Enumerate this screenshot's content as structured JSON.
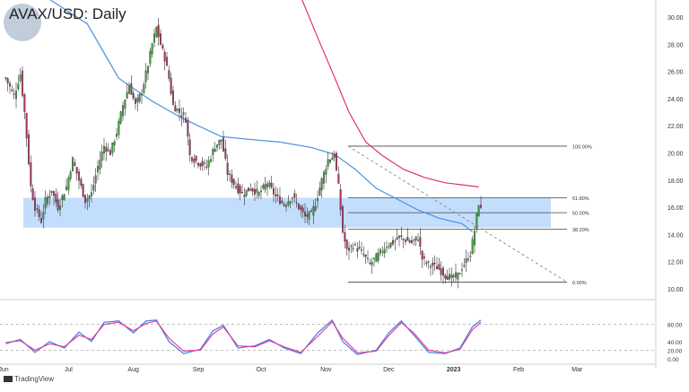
{
  "header": {
    "title": "AVAX/USD: Daily"
  },
  "footer": {
    "brand": "TradingView"
  },
  "colors": {
    "up": "#3a9a3a",
    "down": "#a8335a",
    "wick": "#333333",
    "ma_fast": "#4a90e2",
    "ma_slow": "#e0307a",
    "zone": "#b9d8fb",
    "stoch_k": "#3f7fe0",
    "stoch_d": "#e040a0"
  },
  "chart_data": [
    {
      "type": "candlestick",
      "title": "AVAX/USD: Daily",
      "y_ticks": [
        "30.00",
        "28.00",
        "26.00",
        "24.00",
        "22.00",
        "20.00",
        "18.00",
        "16.00",
        "14.00",
        "12.00",
        "10.00"
      ],
      "x_ticks": [
        "Jun",
        "Jul",
        "Aug",
        "Sep",
        "Oct",
        "Nov",
        "Dec",
        "2023",
        "Feb",
        "Mar"
      ],
      "ylim": [
        9.5,
        31.0
      ],
      "grid": false,
      "support_zone": [
        14.5,
        16.7
      ],
      "fibonacci": {
        "levels": [
          {
            "label": "100.00%",
            "value": 20.5
          },
          {
            "label": "61.80%",
            "value": 16.7
          },
          {
            "label": "50.00%",
            "value": 15.6
          },
          {
            "label": "38.20%",
            "value": 14.4
          },
          {
            "label": "0.00%",
            "value": 10.5
          }
        ]
      },
      "close_series": [
        {
          "date": "2022-06-01",
          "close": 25.5
        },
        {
          "date": "2022-06-05",
          "close": 24.2
        },
        {
          "date": "2022-06-08",
          "close": 25.8
        },
        {
          "date": "2022-06-10",
          "close": 23.0
        },
        {
          "date": "2022-06-13",
          "close": 17.5
        },
        {
          "date": "2022-06-15",
          "close": 16.0
        },
        {
          "date": "2022-06-18",
          "close": 15.0
        },
        {
          "date": "2022-06-20",
          "close": 16.5
        },
        {
          "date": "2022-06-23",
          "close": 17.2
        },
        {
          "date": "2022-06-26",
          "close": 16.0
        },
        {
          "date": "2022-06-30",
          "close": 17.5
        },
        {
          "date": "2022-07-03",
          "close": 19.5
        },
        {
          "date": "2022-07-06",
          "close": 18.0
        },
        {
          "date": "2022-07-09",
          "close": 16.5
        },
        {
          "date": "2022-07-12",
          "close": 17.0
        },
        {
          "date": "2022-07-15",
          "close": 19.0
        },
        {
          "date": "2022-07-18",
          "close": 20.5
        },
        {
          "date": "2022-07-21",
          "close": 20.0
        },
        {
          "date": "2022-07-24",
          "close": 21.5
        },
        {
          "date": "2022-07-27",
          "close": 23.5
        },
        {
          "date": "2022-07-30",
          "close": 25.0
        },
        {
          "date": "2022-08-02",
          "close": 23.5
        },
        {
          "date": "2022-08-05",
          "close": 24.5
        },
        {
          "date": "2022-08-08",
          "close": 26.5
        },
        {
          "date": "2022-08-10",
          "close": 28.0
        },
        {
          "date": "2022-08-12",
          "close": 29.2
        },
        {
          "date": "2022-08-14",
          "close": 28.0
        },
        {
          "date": "2022-08-16",
          "close": 27.0
        },
        {
          "date": "2022-08-18",
          "close": 25.5
        },
        {
          "date": "2022-08-20",
          "close": 23.5
        },
        {
          "date": "2022-08-23",
          "close": 23.0
        },
        {
          "date": "2022-08-26",
          "close": 22.5
        },
        {
          "date": "2022-08-28",
          "close": 19.8
        },
        {
          "date": "2022-09-01",
          "close": 19.3
        },
        {
          "date": "2022-09-05",
          "close": 19.0
        },
        {
          "date": "2022-09-09",
          "close": 20.5
        },
        {
          "date": "2022-09-12",
          "close": 21.0
        },
        {
          "date": "2022-09-15",
          "close": 18.5
        },
        {
          "date": "2022-09-19",
          "close": 17.5
        },
        {
          "date": "2022-09-22",
          "close": 17.0
        },
        {
          "date": "2022-09-26",
          "close": 17.4
        },
        {
          "date": "2022-09-30",
          "close": 17.0
        },
        {
          "date": "2022-10-04",
          "close": 17.8
        },
        {
          "date": "2022-10-08",
          "close": 16.8
        },
        {
          "date": "2022-10-12",
          "close": 16.2
        },
        {
          "date": "2022-10-16",
          "close": 16.8
        },
        {
          "date": "2022-10-19",
          "close": 16.0
        },
        {
          "date": "2022-10-22",
          "close": 15.3
        },
        {
          "date": "2022-10-25",
          "close": 15.5
        },
        {
          "date": "2022-10-27",
          "close": 16.3
        },
        {
          "date": "2022-10-30",
          "close": 18.0
        },
        {
          "date": "2022-11-02",
          "close": 19.5
        },
        {
          "date": "2022-11-05",
          "close": 19.8
        },
        {
          "date": "2022-11-07",
          "close": 17.5
        },
        {
          "date": "2022-11-09",
          "close": 14.2
        },
        {
          "date": "2022-11-11",
          "close": 12.8
        },
        {
          "date": "2022-11-14",
          "close": 13.2
        },
        {
          "date": "2022-11-18",
          "close": 12.7
        },
        {
          "date": "2022-11-22",
          "close": 11.8
        },
        {
          "date": "2022-11-26",
          "close": 12.5
        },
        {
          "date": "2022-11-30",
          "close": 13.2
        },
        {
          "date": "2022-12-03",
          "close": 13.4
        },
        {
          "date": "2022-12-06",
          "close": 13.8
        },
        {
          "date": "2022-12-09",
          "close": 13.6
        },
        {
          "date": "2022-12-12",
          "close": 13.4
        },
        {
          "date": "2022-12-15",
          "close": 13.8
        },
        {
          "date": "2022-12-17",
          "close": 12.2
        },
        {
          "date": "2022-12-20",
          "close": 11.8
        },
        {
          "date": "2022-12-24",
          "close": 11.6
        },
        {
          "date": "2022-12-28",
          "close": 11.0
        },
        {
          "date": "2022-12-31",
          "close": 10.8
        },
        {
          "date": "2023-01-03",
          "close": 11.0
        },
        {
          "date": "2023-01-06",
          "close": 11.8
        },
        {
          "date": "2023-01-09",
          "close": 12.6
        },
        {
          "date": "2023-01-11",
          "close": 14.3
        },
        {
          "date": "2023-01-13",
          "close": 16.3
        },
        {
          "date": "2023-01-14",
          "close": 15.8
        }
      ],
      "ma_fast_values": [
        {
          "date": "2022-06-15",
          "value": 32.0
        },
        {
          "date": "2022-07-10",
          "value": 29.5
        },
        {
          "date": "2022-07-25",
          "value": 25.5
        },
        {
          "date": "2022-08-10",
          "value": 23.8
        },
        {
          "date": "2022-08-25",
          "value": 22.5
        },
        {
          "date": "2022-09-12",
          "value": 21.2
        },
        {
          "date": "2022-09-25",
          "value": 21.0
        },
        {
          "date": "2022-10-10",
          "value": 20.8
        },
        {
          "date": "2022-10-25",
          "value": 20.4
        },
        {
          "date": "2022-11-05",
          "value": 19.9
        },
        {
          "date": "2022-11-15",
          "value": 18.8
        },
        {
          "date": "2022-11-25",
          "value": 17.4
        },
        {
          "date": "2022-12-05",
          "value": 16.6
        },
        {
          "date": "2022-12-15",
          "value": 15.8
        },
        {
          "date": "2022-12-25",
          "value": 15.2
        },
        {
          "date": "2023-01-05",
          "value": 14.8
        },
        {
          "date": "2023-01-10",
          "value": 14.2
        }
      ],
      "ma_slow_values": [
        {
          "date": "2022-10-20",
          "value": 31.5
        },
        {
          "date": "2022-10-28",
          "value": 28.5
        },
        {
          "date": "2022-11-05",
          "value": 25.6
        },
        {
          "date": "2022-11-12",
          "value": 23.0
        },
        {
          "date": "2022-11-20",
          "value": 20.8
        },
        {
          "date": "2022-11-28",
          "value": 19.8
        },
        {
          "date": "2022-12-08",
          "value": 18.8
        },
        {
          "date": "2022-12-18",
          "value": 18.2
        },
        {
          "date": "2022-12-28",
          "value": 17.8
        },
        {
          "date": "2023-01-08",
          "value": 17.6
        },
        {
          "date": "2023-01-13",
          "value": 17.5
        }
      ]
    },
    {
      "type": "line",
      "title": "",
      "y_ticks": [
        "80.00",
        "40.00",
        "20.00",
        "0.00"
      ],
      "ylim": [
        -5,
        100
      ],
      "overbought": 80,
      "oversold": 20,
      "series": [
        {
          "values": [
            {
              "date": "2022-06-01",
              "value": 35
            },
            {
              "date": "2022-06-08",
              "value": 45
            },
            {
              "date": "2022-06-15",
              "value": 15
            },
            {
              "date": "2022-06-22",
              "value": 40
            },
            {
              "date": "2022-06-29",
              "value": 25
            },
            {
              "date": "2022-07-06",
              "value": 62
            },
            {
              "date": "2022-07-12",
              "value": 40
            },
            {
              "date": "2022-07-18",
              "value": 85
            },
            {
              "date": "2022-07-25",
              "value": 88
            },
            {
              "date": "2022-08-01",
              "value": 60
            },
            {
              "date": "2022-08-07",
              "value": 88
            },
            {
              "date": "2022-08-12",
              "value": 90
            },
            {
              "date": "2022-08-18",
              "value": 40
            },
            {
              "date": "2022-08-25",
              "value": 12
            },
            {
              "date": "2022-09-02",
              "value": 22
            },
            {
              "date": "2022-09-08",
              "value": 65
            },
            {
              "date": "2022-09-13",
              "value": 78
            },
            {
              "date": "2022-09-20",
              "value": 25
            },
            {
              "date": "2022-09-28",
              "value": 30
            },
            {
              "date": "2022-10-05",
              "value": 45
            },
            {
              "date": "2022-10-12",
              "value": 25
            },
            {
              "date": "2022-10-20",
              "value": 12
            },
            {
              "date": "2022-10-28",
              "value": 60
            },
            {
              "date": "2022-11-04",
              "value": 90
            },
            {
              "date": "2022-11-09",
              "value": 40
            },
            {
              "date": "2022-11-16",
              "value": 10
            },
            {
              "date": "2022-11-25",
              "value": 20
            },
            {
              "date": "2022-12-01",
              "value": 60
            },
            {
              "date": "2022-12-07",
              "value": 88
            },
            {
              "date": "2022-12-13",
              "value": 55
            },
            {
              "date": "2022-12-20",
              "value": 15
            },
            {
              "date": "2022-12-28",
              "value": 12
            },
            {
              "date": "2023-01-04",
              "value": 25
            },
            {
              "date": "2023-01-10",
              "value": 75
            },
            {
              "date": "2023-01-14",
              "value": 90
            }
          ]
        },
        {
          "values": [
            {
              "date": "2022-06-01",
              "value": 38
            },
            {
              "date": "2022-06-08",
              "value": 42
            },
            {
              "date": "2022-06-15",
              "value": 20
            },
            {
              "date": "2022-06-22",
              "value": 35
            },
            {
              "date": "2022-06-29",
              "value": 28
            },
            {
              "date": "2022-07-06",
              "value": 55
            },
            {
              "date": "2022-07-12",
              "value": 45
            },
            {
              "date": "2022-07-18",
              "value": 80
            },
            {
              "date": "2022-07-25",
              "value": 85
            },
            {
              "date": "2022-08-01",
              "value": 65
            },
            {
              "date": "2022-08-07",
              "value": 82
            },
            {
              "date": "2022-08-12",
              "value": 88
            },
            {
              "date": "2022-08-18",
              "value": 48
            },
            {
              "date": "2022-08-25",
              "value": 18
            },
            {
              "date": "2022-09-02",
              "value": 20
            },
            {
              "date": "2022-09-08",
              "value": 58
            },
            {
              "date": "2022-09-13",
              "value": 74
            },
            {
              "date": "2022-09-20",
              "value": 30
            },
            {
              "date": "2022-09-28",
              "value": 28
            },
            {
              "date": "2022-10-05",
              "value": 42
            },
            {
              "date": "2022-10-12",
              "value": 28
            },
            {
              "date": "2022-10-20",
              "value": 15
            },
            {
              "date": "2022-10-28",
              "value": 52
            },
            {
              "date": "2022-11-04",
              "value": 86
            },
            {
              "date": "2022-11-09",
              "value": 48
            },
            {
              "date": "2022-11-16",
              "value": 14
            },
            {
              "date": "2022-11-25",
              "value": 18
            },
            {
              "date": "2022-12-01",
              "value": 54
            },
            {
              "date": "2022-12-07",
              "value": 84
            },
            {
              "date": "2022-12-13",
              "value": 60
            },
            {
              "date": "2022-12-20",
              "value": 20
            },
            {
              "date": "2022-12-28",
              "value": 14
            },
            {
              "date": "2023-01-04",
              "value": 22
            },
            {
              "date": "2023-01-10",
              "value": 68
            },
            {
              "date": "2023-01-14",
              "value": 85
            }
          ]
        }
      ]
    }
  ]
}
